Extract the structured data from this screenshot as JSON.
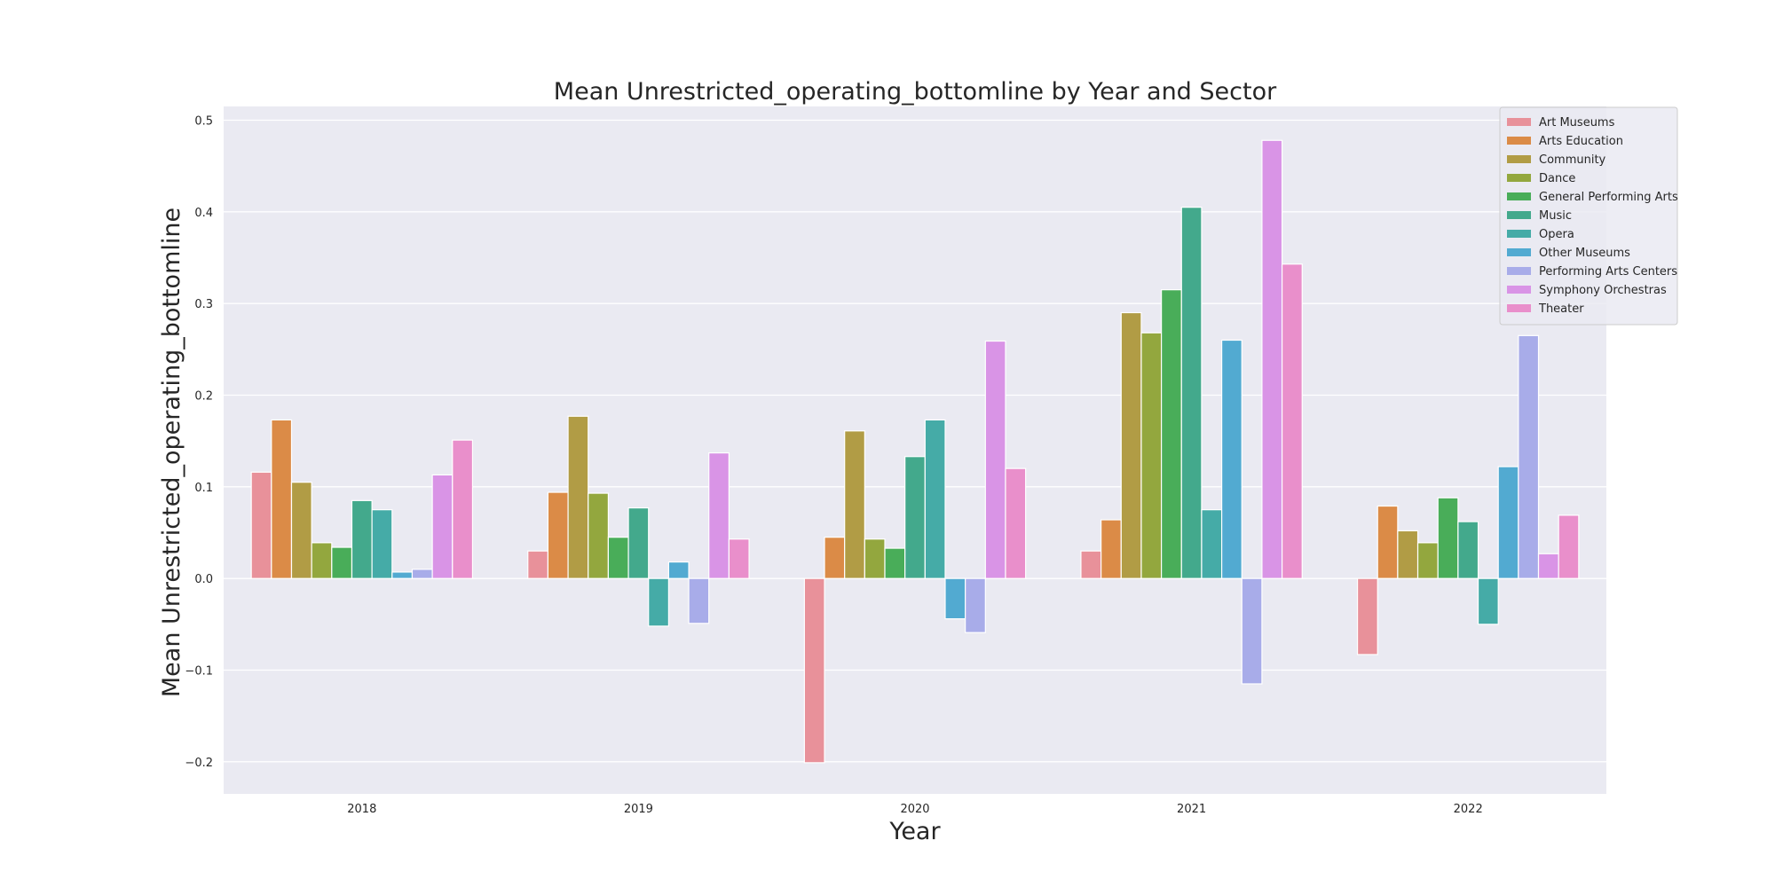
{
  "chart_data": {
    "type": "bar",
    "title": "Mean Unrestricted_operating_bottomline by Year and Sector",
    "xlabel": "Year",
    "ylabel": "Mean Unrestricted_operating_bottomline",
    "categories": [
      "2018",
      "2019",
      "2020",
      "2021",
      "2022"
    ],
    "ylim": [
      -0.235,
      0.515
    ],
    "yticks": [
      -0.2,
      -0.1,
      0.0,
      0.1,
      0.2,
      0.3,
      0.4,
      0.5
    ],
    "ytick_labels": [
      "−0.2",
      "−0.1",
      "0.0",
      "0.1",
      "0.2",
      "0.3",
      "0.4",
      "0.5"
    ],
    "grid": true,
    "legend_position": "top-right",
    "series": [
      {
        "name": "Art Museums",
        "color": "#e8919a",
        "values": [
          0.116,
          0.03,
          -0.201,
          0.03,
          -0.083
        ]
      },
      {
        "name": "Arts Education",
        "color": "#db8b47",
        "values": [
          0.173,
          0.094,
          0.045,
          0.064,
          0.079
        ]
      },
      {
        "name": "Community",
        "color": "#b19c45",
        "values": [
          0.105,
          0.177,
          0.161,
          0.29,
          0.052
        ]
      },
      {
        "name": "Dance",
        "color": "#93a73e",
        "values": [
          0.039,
          0.093,
          0.043,
          0.268,
          0.039
        ]
      },
      {
        "name": "General Performing Arts",
        "color": "#49ad59",
        "values": [
          0.034,
          0.045,
          0.033,
          0.315,
          0.088
        ]
      },
      {
        "name": "Music",
        "color": "#43a98c",
        "values": [
          0.085,
          0.077,
          0.133,
          0.405,
          0.062
        ]
      },
      {
        "name": "Opera",
        "color": "#45aba7",
        "values": [
          0.075,
          -0.052,
          0.173,
          0.075,
          -0.05
        ]
      },
      {
        "name": "Other Museums",
        "color": "#52aad1",
        "values": [
          0.007,
          0.018,
          -0.044,
          0.26,
          0.122
        ]
      },
      {
        "name": "Performing Arts Centers",
        "color": "#a8ace9",
        "values": [
          0.01,
          -0.049,
          -0.059,
          -0.115,
          0.265
        ]
      },
      {
        "name": "Symphony Orchestras",
        "color": "#d994e6",
        "values": [
          0.113,
          0.137,
          0.259,
          0.478,
          0.027
        ]
      },
      {
        "name": "Theater",
        "color": "#e98fcb",
        "values": [
          0.151,
          0.043,
          0.12,
          0.343,
          0.069
        ]
      }
    ]
  },
  "colors": {
    "plot_background": "#eaeaf2",
    "grid": "#ffffff",
    "page_background": "#ffffff"
  }
}
